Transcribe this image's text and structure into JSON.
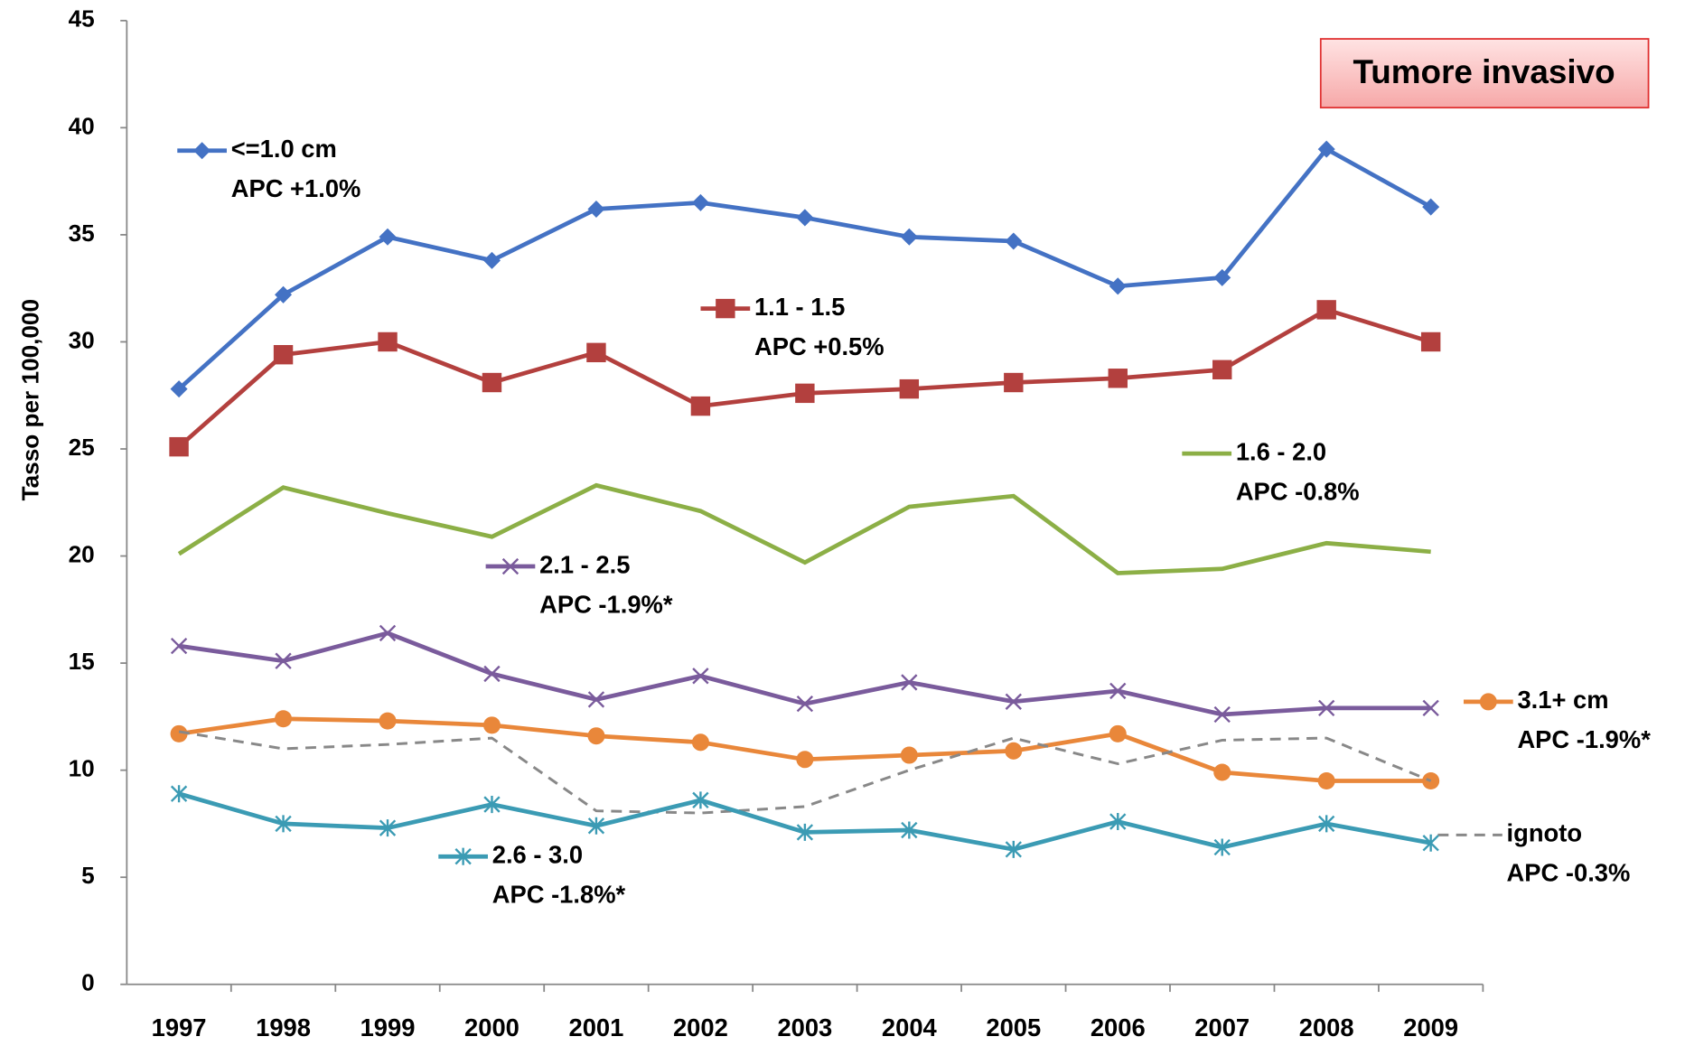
{
  "chart_data": {
    "type": "line",
    "y_label": "Tasso per 100,000",
    "box_label": "Tumore invasivo",
    "categories": [
      "1997",
      "1998",
      "1999",
      "2000",
      "2001",
      "2002",
      "2003",
      "2004",
      "2005",
      "2006",
      "2007",
      "2008",
      "2009"
    ],
    "ylim": [
      0,
      45
    ],
    "yticks": [
      0,
      5,
      10,
      15,
      20,
      25,
      30,
      35,
      40,
      45
    ],
    "series": [
      {
        "name": "<=1.0 cm",
        "annotation": "APC +1.0%",
        "color": "#4472c4",
        "marker": "diamond",
        "values": [
          27.8,
          32.2,
          34.9,
          33.8,
          36.2,
          36.5,
          35.8,
          34.9,
          34.7,
          32.6,
          33.0,
          39.0,
          36.3
        ]
      },
      {
        "name": "1.1 - 1.5",
        "annotation": "APC +0.5%",
        "color": "#b3403e",
        "marker": "square",
        "values": [
          25.1,
          29.4,
          30.0,
          28.1,
          29.5,
          27.0,
          27.6,
          27.8,
          28.1,
          28.3,
          28.7,
          31.5,
          30.0
        ]
      },
      {
        "name": "1.6 - 2.0",
        "annotation": "APC -0.8%",
        "color": "#8caf46",
        "marker": "none",
        "values": [
          20.1,
          23.2,
          22.0,
          20.9,
          23.3,
          22.1,
          19.7,
          22.3,
          22.8,
          19.2,
          19.4,
          20.6,
          20.2
        ]
      },
      {
        "name": "2.1 - 2.5",
        "annotation": "APC -1.9%*",
        "color": "#7a5b9c",
        "marker": "x",
        "values": [
          15.8,
          15.1,
          16.4,
          14.5,
          13.3,
          14.4,
          13.1,
          14.1,
          13.2,
          13.7,
          12.6,
          12.9,
          12.9
        ]
      },
      {
        "name": "3.1+ cm",
        "annotation": "APC -1.9%*",
        "color": "#e9873a",
        "marker": "circle",
        "values": [
          11.7,
          12.4,
          12.3,
          12.1,
          11.6,
          11.3,
          10.5,
          10.7,
          10.9,
          11.7,
          9.9,
          9.5,
          9.5
        ]
      },
      {
        "name": "ignoto",
        "annotation": "APC -0.3%",
        "color": "#888888",
        "marker": "none",
        "dashed": true,
        "values": [
          11.8,
          11.0,
          11.2,
          11.5,
          8.1,
          8.0,
          8.3,
          10.0,
          11.5,
          10.3,
          11.4,
          11.5,
          9.5
        ]
      },
      {
        "name": "2.6 - 3.0",
        "annotation": "APC -1.8%*",
        "color": "#3b9bb4",
        "marker": "star",
        "values": [
          8.9,
          7.5,
          7.3,
          8.4,
          7.4,
          8.6,
          7.1,
          7.2,
          6.3,
          7.6,
          6.4,
          7.5,
          6.6
        ]
      }
    ]
  }
}
